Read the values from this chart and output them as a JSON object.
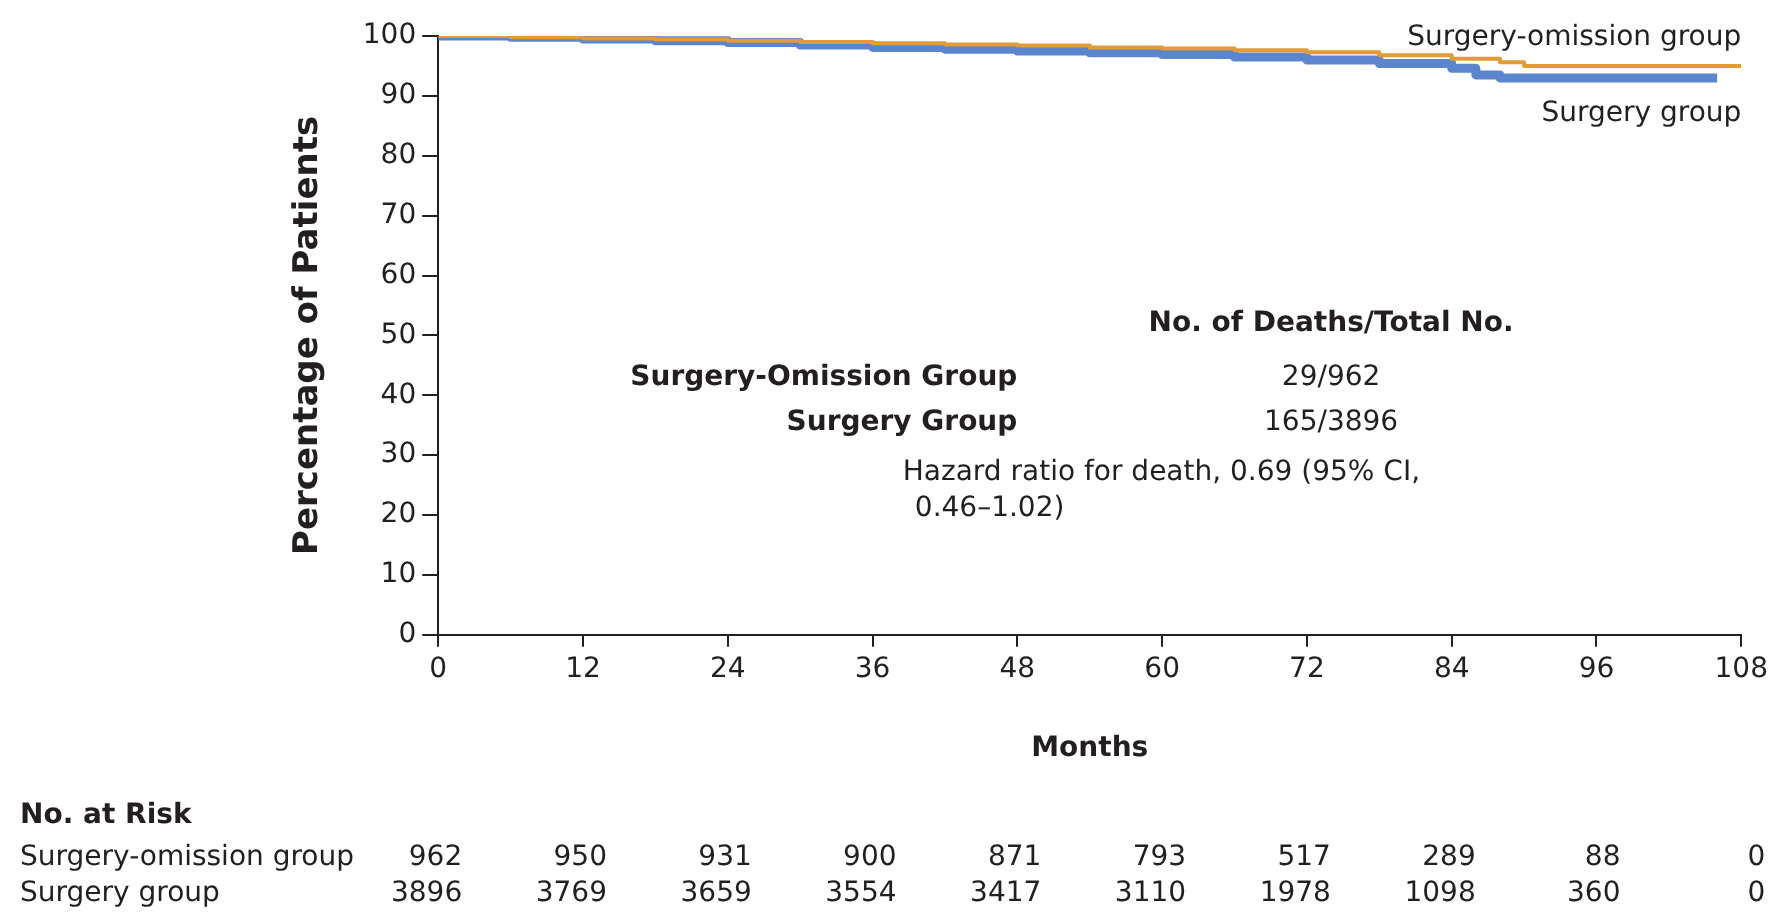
{
  "chart_data": {
    "type": "step",
    "xlabel": "Months",
    "ylabel": "Percentage of Patients",
    "xlim": [
      0,
      108
    ],
    "xticks": [
      0,
      12,
      24,
      36,
      48,
      60,
      72,
      84,
      96,
      108
    ],
    "ylim": [
      0,
      100
    ],
    "yticks": [
      0,
      10,
      20,
      30,
      40,
      50,
      60,
      70,
      80,
      90,
      100
    ],
    "grid": false,
    "legend": false,
    "marker": "none",
    "line_style": "solid",
    "series": [
      {
        "name": "Surgery-omission group",
        "color": "#e39b37",
        "x": [
          0,
          6,
          12,
          18,
          24,
          30,
          36,
          42,
          48,
          54,
          60,
          66,
          72,
          78,
          84,
          88,
          90,
          96,
          108
        ],
        "values": [
          100,
          99.8,
          99.6,
          99.4,
          99.2,
          99,
          98.8,
          98.6,
          98.4,
          98.1,
          97.9,
          97.6,
          97.3,
          96.8,
          96.2,
          95.6,
          95,
          95,
          95
        ]
      },
      {
        "name": "Surgery group",
        "color": "#5b85cc",
        "x": [
          0,
          6,
          12,
          18,
          24,
          30,
          36,
          42,
          48,
          54,
          60,
          66,
          72,
          78,
          84,
          86,
          88,
          96,
          106
        ],
        "values": [
          100,
          99.8,
          99.5,
          99.2,
          98.9,
          98.5,
          98.1,
          97.8,
          97.5,
          97.2,
          96.9,
          96.5,
          96,
          95.4,
          94.6,
          93.5,
          93,
          93,
          93
        ]
      }
    ],
    "annotations": [
      "No. of Deaths/Total No.",
      "Surgery-Omission Group\t29/962",
      "Surgery Group\t165/3896",
      "Hazard ratio for death, 0.69 (95% CI,\n0.46–1.02)",
      "No. at Risk",
      "Surgery-omission group\t962\t950\t931\t900\t871\t793\t517\t289\t88\t0",
      "Surgery group\t3896\t3769\t3659\t3554\t3417\t3110\t1978\t1098\t360\t0"
    ]
  }
}
